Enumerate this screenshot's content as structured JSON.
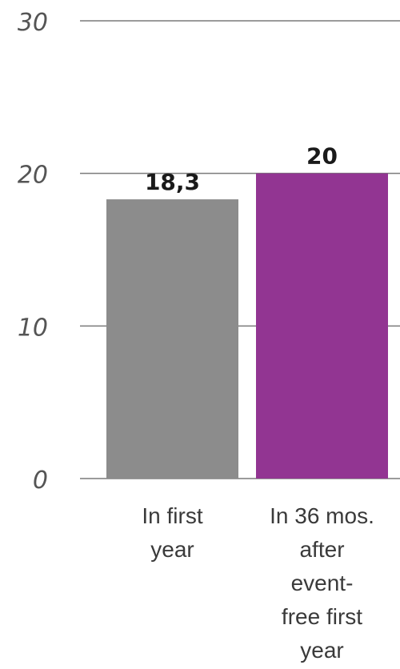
{
  "chart_data": {
    "type": "bar",
    "categories": [
      [
        "In first",
        "year"
      ],
      [
        "In 36 mos.",
        "after",
        "event-",
        "free first",
        "year"
      ]
    ],
    "values": [
      18.3,
      20
    ],
    "data_labels": [
      "18,3",
      "20"
    ],
    "bar_colors": [
      "#8c8c8c",
      "#923592"
    ],
    "yticks": [
      "0",
      "10",
      "20",
      "30"
    ],
    "ylim": [
      0,
      30
    ],
    "grid": true,
    "title": "",
    "xlabel": "",
    "ylabel": ""
  }
}
